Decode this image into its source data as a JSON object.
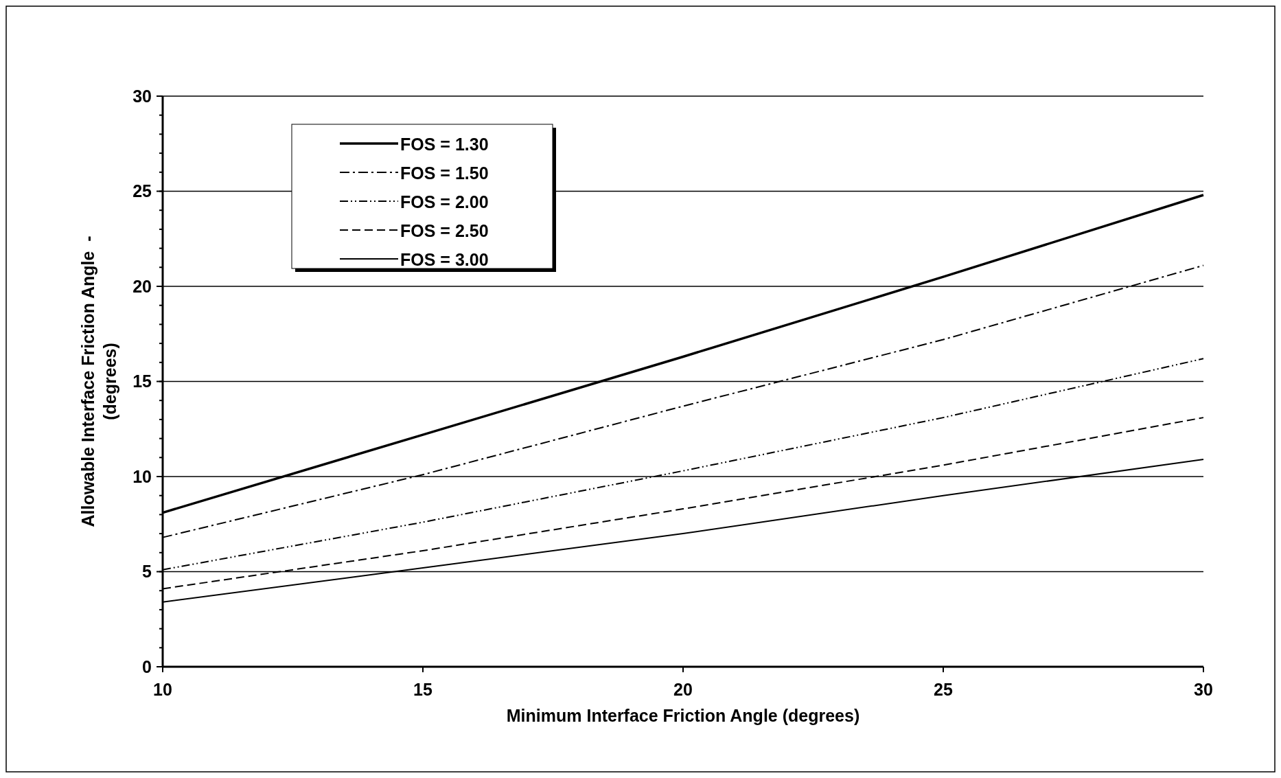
{
  "chart_data": {
    "type": "line",
    "xlabel": "Minimum Interface Friction Angle (degrees)",
    "ylabel": "Allowable Interface Friction Angle  -\n(degrees)",
    "x": [
      10,
      15,
      20,
      25,
      30
    ],
    "xlim": [
      10,
      30
    ],
    "xticks": [
      10,
      15,
      20,
      25,
      30
    ],
    "ylim": [
      0,
      30
    ],
    "yticks": [
      0,
      5,
      10,
      15,
      20,
      25,
      30
    ],
    "grid": "y",
    "legend": "top left",
    "marker": "none",
    "series": [
      {
        "name": "FOS = 1.30",
        "color": "#000000",
        "line_style": "solid",
        "values": [
          8.1,
          12.2,
          16.3,
          20.5,
          24.8
        ]
      },
      {
        "name": "FOS = 1.50",
        "color": "#000000",
        "line_style": "dashed",
        "values": [
          6.8,
          10.1,
          13.7,
          17.2,
          21.1
        ]
      },
      {
        "name": "FOS = 2.00",
        "color": "#000000",
        "line_style": "dotted",
        "values": [
          5.1,
          7.6,
          10.3,
          13.1,
          16.2
        ]
      },
      {
        "name": "FOS = 2.50",
        "color": "#000000",
        "line_style": "dashed",
        "values": [
          4.1,
          6.1,
          8.3,
          10.6,
          13.1
        ]
      },
      {
        "name": "FOS = 3.00",
        "color": "#000000",
        "line_style": "solid",
        "values": [
          3.4,
          5.2,
          7.0,
          9.0,
          10.9
        ]
      }
    ]
  }
}
